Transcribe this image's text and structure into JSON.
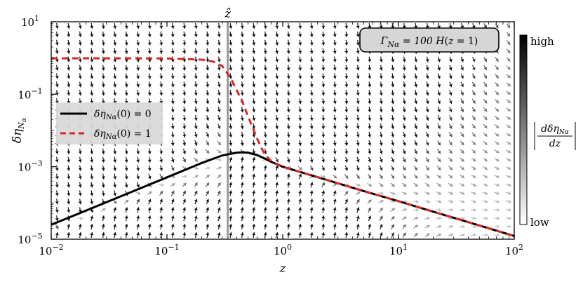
{
  "chart_data": {
    "type": "line",
    "xscale": "log",
    "yscale": "log",
    "xlim": [
      0.01,
      100
    ],
    "ylim": [
      1e-05,
      10
    ],
    "xlabel": "z",
    "ylabel": "δη_{Nα}",
    "xticks": [
      {
        "value": 0.01,
        "base": "10",
        "exp": "−2"
      },
      {
        "value": 0.1,
        "base": "10",
        "exp": "−1"
      },
      {
        "value": 1,
        "base": "10",
        "exp": "0"
      },
      {
        "value": 10,
        "base": "10",
        "exp": "1"
      },
      {
        "value": 100,
        "base": "10",
        "exp": "2"
      }
    ],
    "yticks": [
      {
        "value": 1e-05,
        "base": "10",
        "exp": "−5"
      },
      {
        "value": 0.001,
        "base": "10",
        "exp": "−3"
      },
      {
        "value": 0.1,
        "base": "10",
        "exp": "−1"
      },
      {
        "value": 10,
        "base": "10",
        "exp": "1"
      }
    ],
    "vline": {
      "x": 0.335,
      "label": "ẑ",
      "color": "#999999"
    },
    "annotation": "Γ_{Nα} = 100 H(z = 1)",
    "series": [
      {
        "name": "δη_{Nα}(0) = 0",
        "color": "#000000",
        "style": "solid",
        "x": [
          0.01,
          0.02,
          0.05,
          0.1,
          0.2,
          0.3,
          0.4,
          0.45,
          0.5,
          0.6,
          0.7,
          0.8,
          1,
          2,
          5,
          10,
          20,
          50,
          100
        ],
        "y": [
          2.5e-05,
          6.16e-05,
          0.000205,
          0.00051,
          0.00127,
          0.00205,
          0.00245,
          0.0025,
          0.00245,
          0.0021,
          0.00168,
          0.00135,
          0.001,
          0.000513,
          0.000214,
          0.000112,
          5.75e-05,
          2.4e-05,
          1.23e-05
        ]
      },
      {
        "name": "δη_{Nα}(0) = 1",
        "color": "#d62728",
        "style": "dashed",
        "x": [
          0.01,
          0.05,
          0.1,
          0.2,
          0.25,
          0.3,
          0.35,
          0.4,
          0.45,
          0.5,
          0.55,
          0.6,
          0.65,
          0.7,
          0.8,
          1,
          2,
          5,
          10,
          20,
          50,
          100
        ],
        "y": [
          0.98,
          0.98,
          0.97,
          0.9,
          0.8,
          0.6,
          0.3,
          0.13,
          0.06,
          0.025,
          0.012,
          0.006,
          0.0035,
          0.0022,
          0.0014,
          0.001,
          0.000513,
          0.000214,
          0.000112,
          5.75e-05,
          2.4e-05,
          1.23e-05
        ]
      }
    ],
    "legend": {
      "position": "center-left"
    },
    "colorbar": {
      "high_label": "high",
      "low_label": "low",
      "title": "|dδη_{Nα}/dz|"
    },
    "quiver": {
      "gamma_over_H": 100
    }
  }
}
